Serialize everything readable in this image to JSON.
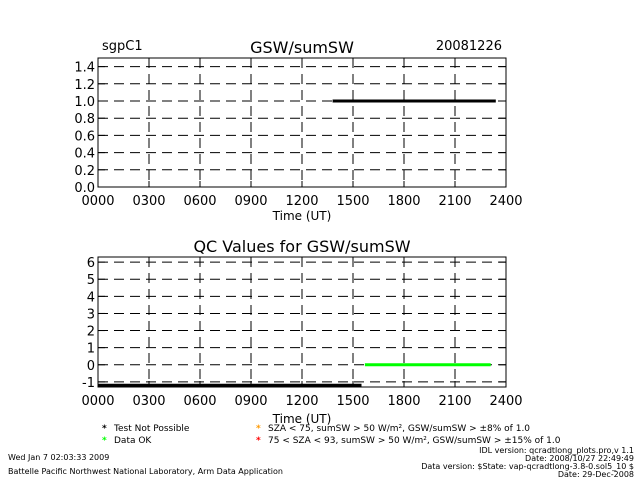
{
  "header": {
    "site": "sgpC1",
    "date": "20081226"
  },
  "colors": {
    "not_possible": "#000000",
    "ok": "#00ff00",
    "warn_orange": "#ff9900",
    "warn_red": "#ff0000"
  },
  "chart_data": [
    {
      "type": "line",
      "title": "GSW/sumSW",
      "xlabel": "Time (UT)",
      "ylabel": "",
      "xlim": [
        0,
        24
      ],
      "ylim": [
        0,
        1.5
      ],
      "x_tick_values": [
        0,
        3,
        6,
        9,
        12,
        15,
        18,
        21,
        24
      ],
      "x_tick_labels": [
        "0000",
        "0300",
        "0600",
        "0900",
        "1200",
        "1500",
        "1800",
        "2100",
        "2400"
      ],
      "y_tick_values": [
        0.0,
        0.2,
        0.4,
        0.6,
        0.8,
        1.0,
        1.2,
        1.4
      ],
      "y_tick_labels": [
        "0.0",
        "0.2",
        "0.4",
        "0.6",
        "0.8",
        "1.0",
        "1.2",
        "1.4"
      ],
      "grid": true,
      "series": [
        {
          "color": "#000000",
          "x": [
            13.8,
            23.4
          ],
          "y": [
            1.0,
            1.0
          ]
        }
      ]
    },
    {
      "type": "line",
      "title": "QC Values for GSW/sumSW",
      "xlabel": "Time (UT)",
      "ylabel": "",
      "xlim": [
        0,
        24
      ],
      "ylim": [
        -1.3,
        6.3
      ],
      "x_tick_values": [
        0,
        3,
        6,
        9,
        12,
        15,
        18,
        21,
        24
      ],
      "x_tick_labels": [
        "0000",
        "0300",
        "0600",
        "0900",
        "1200",
        "1500",
        "1800",
        "2100",
        "2400"
      ],
      "y_tick_values": [
        -1,
        0,
        1,
        2,
        3,
        4,
        5,
        6
      ],
      "y_tick_labels": [
        "-1",
        "0",
        "1",
        "2",
        "3",
        "4",
        "5",
        "6"
      ],
      "grid": true,
      "series": [
        {
          "color": "#000000",
          "x": [
            0,
            15.5
          ],
          "y": [
            -1.2,
            -1.2
          ]
        },
        {
          "color": "#00ff00",
          "x": [
            15.7,
            23.1
          ],
          "y": [
            0,
            0
          ]
        }
      ]
    }
  ],
  "legend": [
    {
      "star_color": "#000000",
      "text": "Test Not Possible"
    },
    {
      "star_color": "#00ff00",
      "text": "Data OK"
    },
    {
      "star_color": "#ff9900",
      "text": "SZA < 75, sumSW > 50 W/m², GSW/sumSW > ±8% of 1.0"
    },
    {
      "star_color": "#ff0000",
      "text": "75 < SZA < 93, sumSW > 50 W/m², GSW/sumSW > ±15% of 1.0"
    }
  ],
  "footer": {
    "timestamp": "Wed Jan  7 02:03:33 2009",
    "lab": "Battelle Pacific Northwest National Laboratory, Arm Data Application",
    "idl_version": "IDL version: qcradtlong_plots.pro,v 1.1",
    "code_date": "Date: 2008/10/27 22:49:49",
    "data_version": "Data version: $State: vap-qcradtlong-3.8-0.sol5_10 $",
    "data_date": "Date: 29-Dec-2008"
  }
}
